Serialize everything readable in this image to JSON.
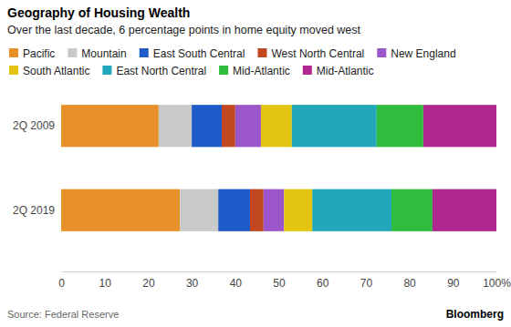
{
  "chart_data": {
    "type": "bar",
    "orientation": "horizontal",
    "stacked": true,
    "title": "Geography of Housing Wealth",
    "subtitle": "Over the last decade, 6 percentage points in home equity moved west",
    "source": "Source: Federal Reserve",
    "branding": "Bloomberg",
    "categories": [
      "2Q 2009",
      "2Q 2019"
    ],
    "series": [
      {
        "name": "Pacific",
        "color": "#e8912b",
        "values": [
          22.4,
          27.3
        ]
      },
      {
        "name": "Mountain",
        "color": "#c9c9c9",
        "values": [
          7.6,
          8.8
        ]
      },
      {
        "name": "East South Central",
        "color": "#1f5cc9",
        "values": [
          6.9,
          7.3
        ]
      },
      {
        "name": "West North Central",
        "color": "#c2481f",
        "values": [
          3.1,
          3.1
        ]
      },
      {
        "name": "New England",
        "color": "#9b57c9",
        "values": [
          5.9,
          4.7
        ]
      },
      {
        "name": "South Atlantic",
        "color": "#e2c411",
        "values": [
          7.1,
          6.5
        ]
      },
      {
        "name": "East North Central",
        "color": "#22a7ba",
        "values": [
          19.5,
          18.2
        ]
      },
      {
        "name": "Mid-Atlantic",
        "color": "#30bc3c",
        "values": [
          10.7,
          9.4
        ]
      },
      {
        "name": "Mid-Atlantic",
        "color": "#b0288f",
        "values": [
          16.8,
          14.7
        ]
      }
    ],
    "xlim": [
      0,
      100
    ],
    "xticks": [
      0,
      10,
      20,
      30,
      40,
      50,
      60,
      70,
      80,
      90,
      {
        "value": 100,
        "label": "100%"
      }
    ],
    "legend": "top",
    "grid": false
  }
}
